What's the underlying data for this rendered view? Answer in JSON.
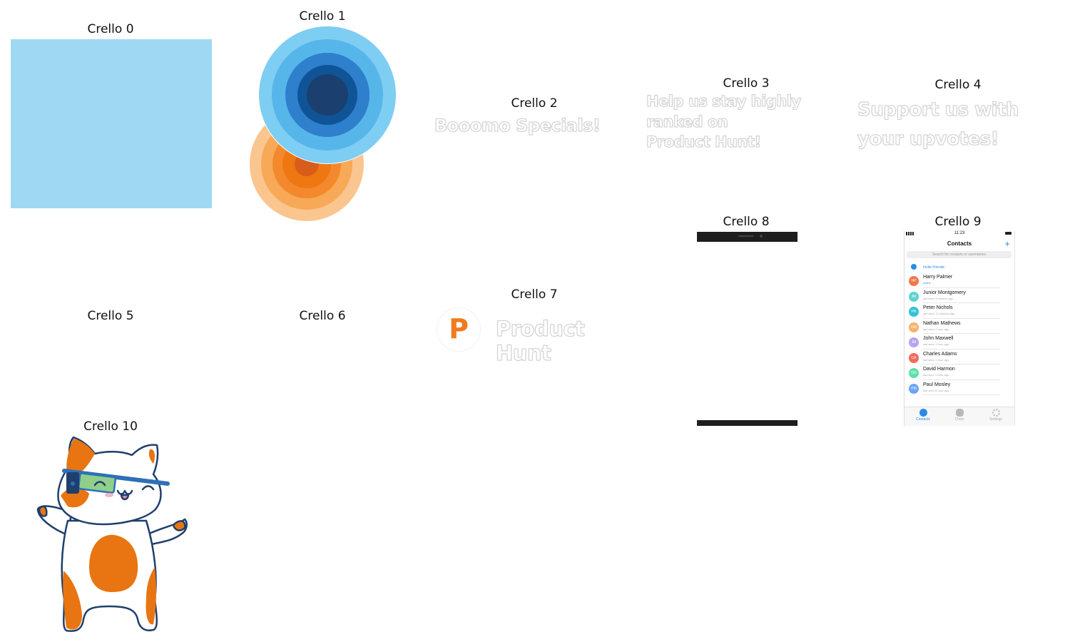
{
  "labels": [
    "Crello 0",
    "Crello 1",
    "Crello 2",
    "Crello 3",
    "Crello 4",
    "Crello 5",
    "Crello 6",
    "Crello 7",
    "Crello 8",
    "Crello 9",
    "Crello 10"
  ],
  "crello2": {
    "text": "Booomo Specials!"
  },
  "crello3": {
    "lines": [
      "Help us stay highly",
      "ranked on",
      "Product Hunt!"
    ]
  },
  "crello4": {
    "lines": [
      "Support us with",
      "your upvotes!"
    ]
  },
  "crello7": {
    "logo_letter": "P",
    "brand": "Product Hunt"
  },
  "crello9": {
    "time": "11:23",
    "title": "Contacts",
    "add": "+",
    "search_placeholder": "Search for contacts or usernames",
    "invite": "Invite Friends",
    "contacts": [
      {
        "initials": "HP",
        "name": "Harry Palmer",
        "status": "online",
        "color": "#f0784a"
      },
      {
        "initials": "JM",
        "name": "Junior Montgomery",
        "status": "last seen 3 minutes ago",
        "color": "#5fd3cf"
      },
      {
        "initials": "PN",
        "name": "Peter Nichols",
        "status": "last seen 10 minutes ago",
        "color": "#34c1d6"
      },
      {
        "initials": "NM",
        "name": "Nathan Mathews",
        "status": "last seen 1 hour ago",
        "color": "#f5b36a"
      },
      {
        "initials": "JM",
        "name": "John Maxwell",
        "status": "last seen 1 hour ago",
        "color": "#b7a3ef"
      },
      {
        "initials": "CA",
        "name": "Charles Adams",
        "status": "last seen 1 hour ago",
        "color": "#f46a5a"
      },
      {
        "initials": "DH",
        "name": "David Harmon",
        "status": "last seen 1 hour ago",
        "color": "#5fe0a6"
      },
      {
        "initials": "PM",
        "name": "Paul Mosley",
        "status": "last seen 8 hour ago",
        "color": "#6aa6f5"
      }
    ],
    "tabs": [
      "Contacts",
      "Chats",
      "Settings"
    ]
  },
  "colors": {
    "crello0_fill": "#9fd8f3",
    "blue_rings": [
      "#7ecdf3",
      "#56b6ea",
      "#2e7fcc",
      "#0f5497",
      "#1b3f6f"
    ],
    "orange_rings": [
      "#fbc58f",
      "#f7a957",
      "#f3892c",
      "#ee7712",
      "#d85d1a"
    ],
    "ph_orange": "#f07b1d",
    "cat_orange": "#e87511",
    "cat_outline": "#1f3f6c"
  }
}
